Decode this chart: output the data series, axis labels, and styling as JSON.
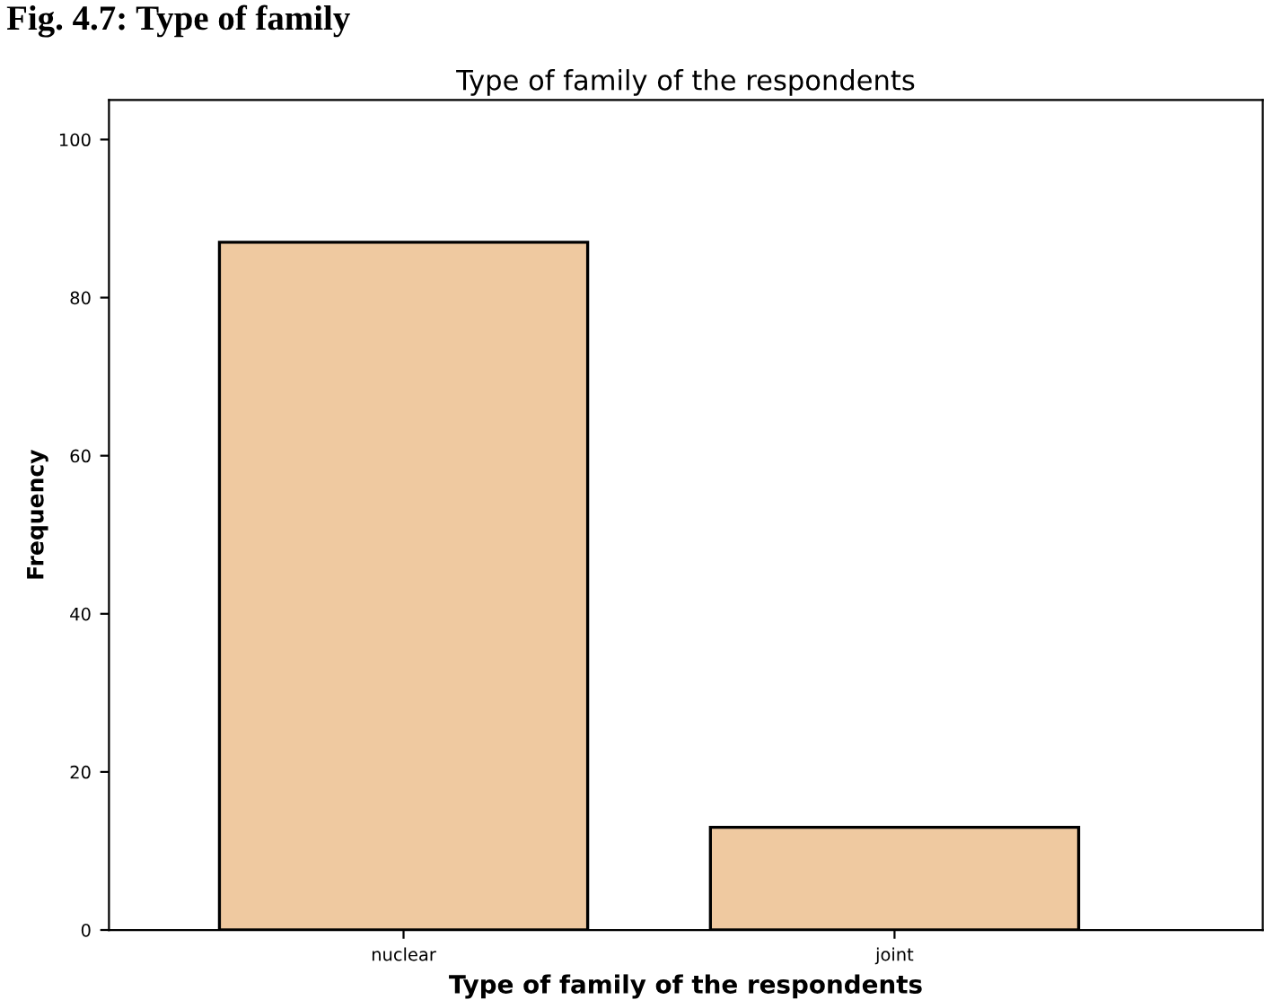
{
  "chart_data": {
    "type": "bar",
    "title": "Type of family of the respondents",
    "xlabel": "Type of family of the respondents",
    "ylabel": "Frequency",
    "annotations": [
      "Fig. 4.7: Type of family"
    ],
    "categories": [
      "nuclear",
      "joint"
    ],
    "values": [
      87,
      13
    ],
    "color": "#efc9a0",
    "ylim": [
      0,
      105
    ],
    "yticks": [
      0,
      20,
      40,
      60,
      80,
      100
    ],
    "grid": false
  }
}
